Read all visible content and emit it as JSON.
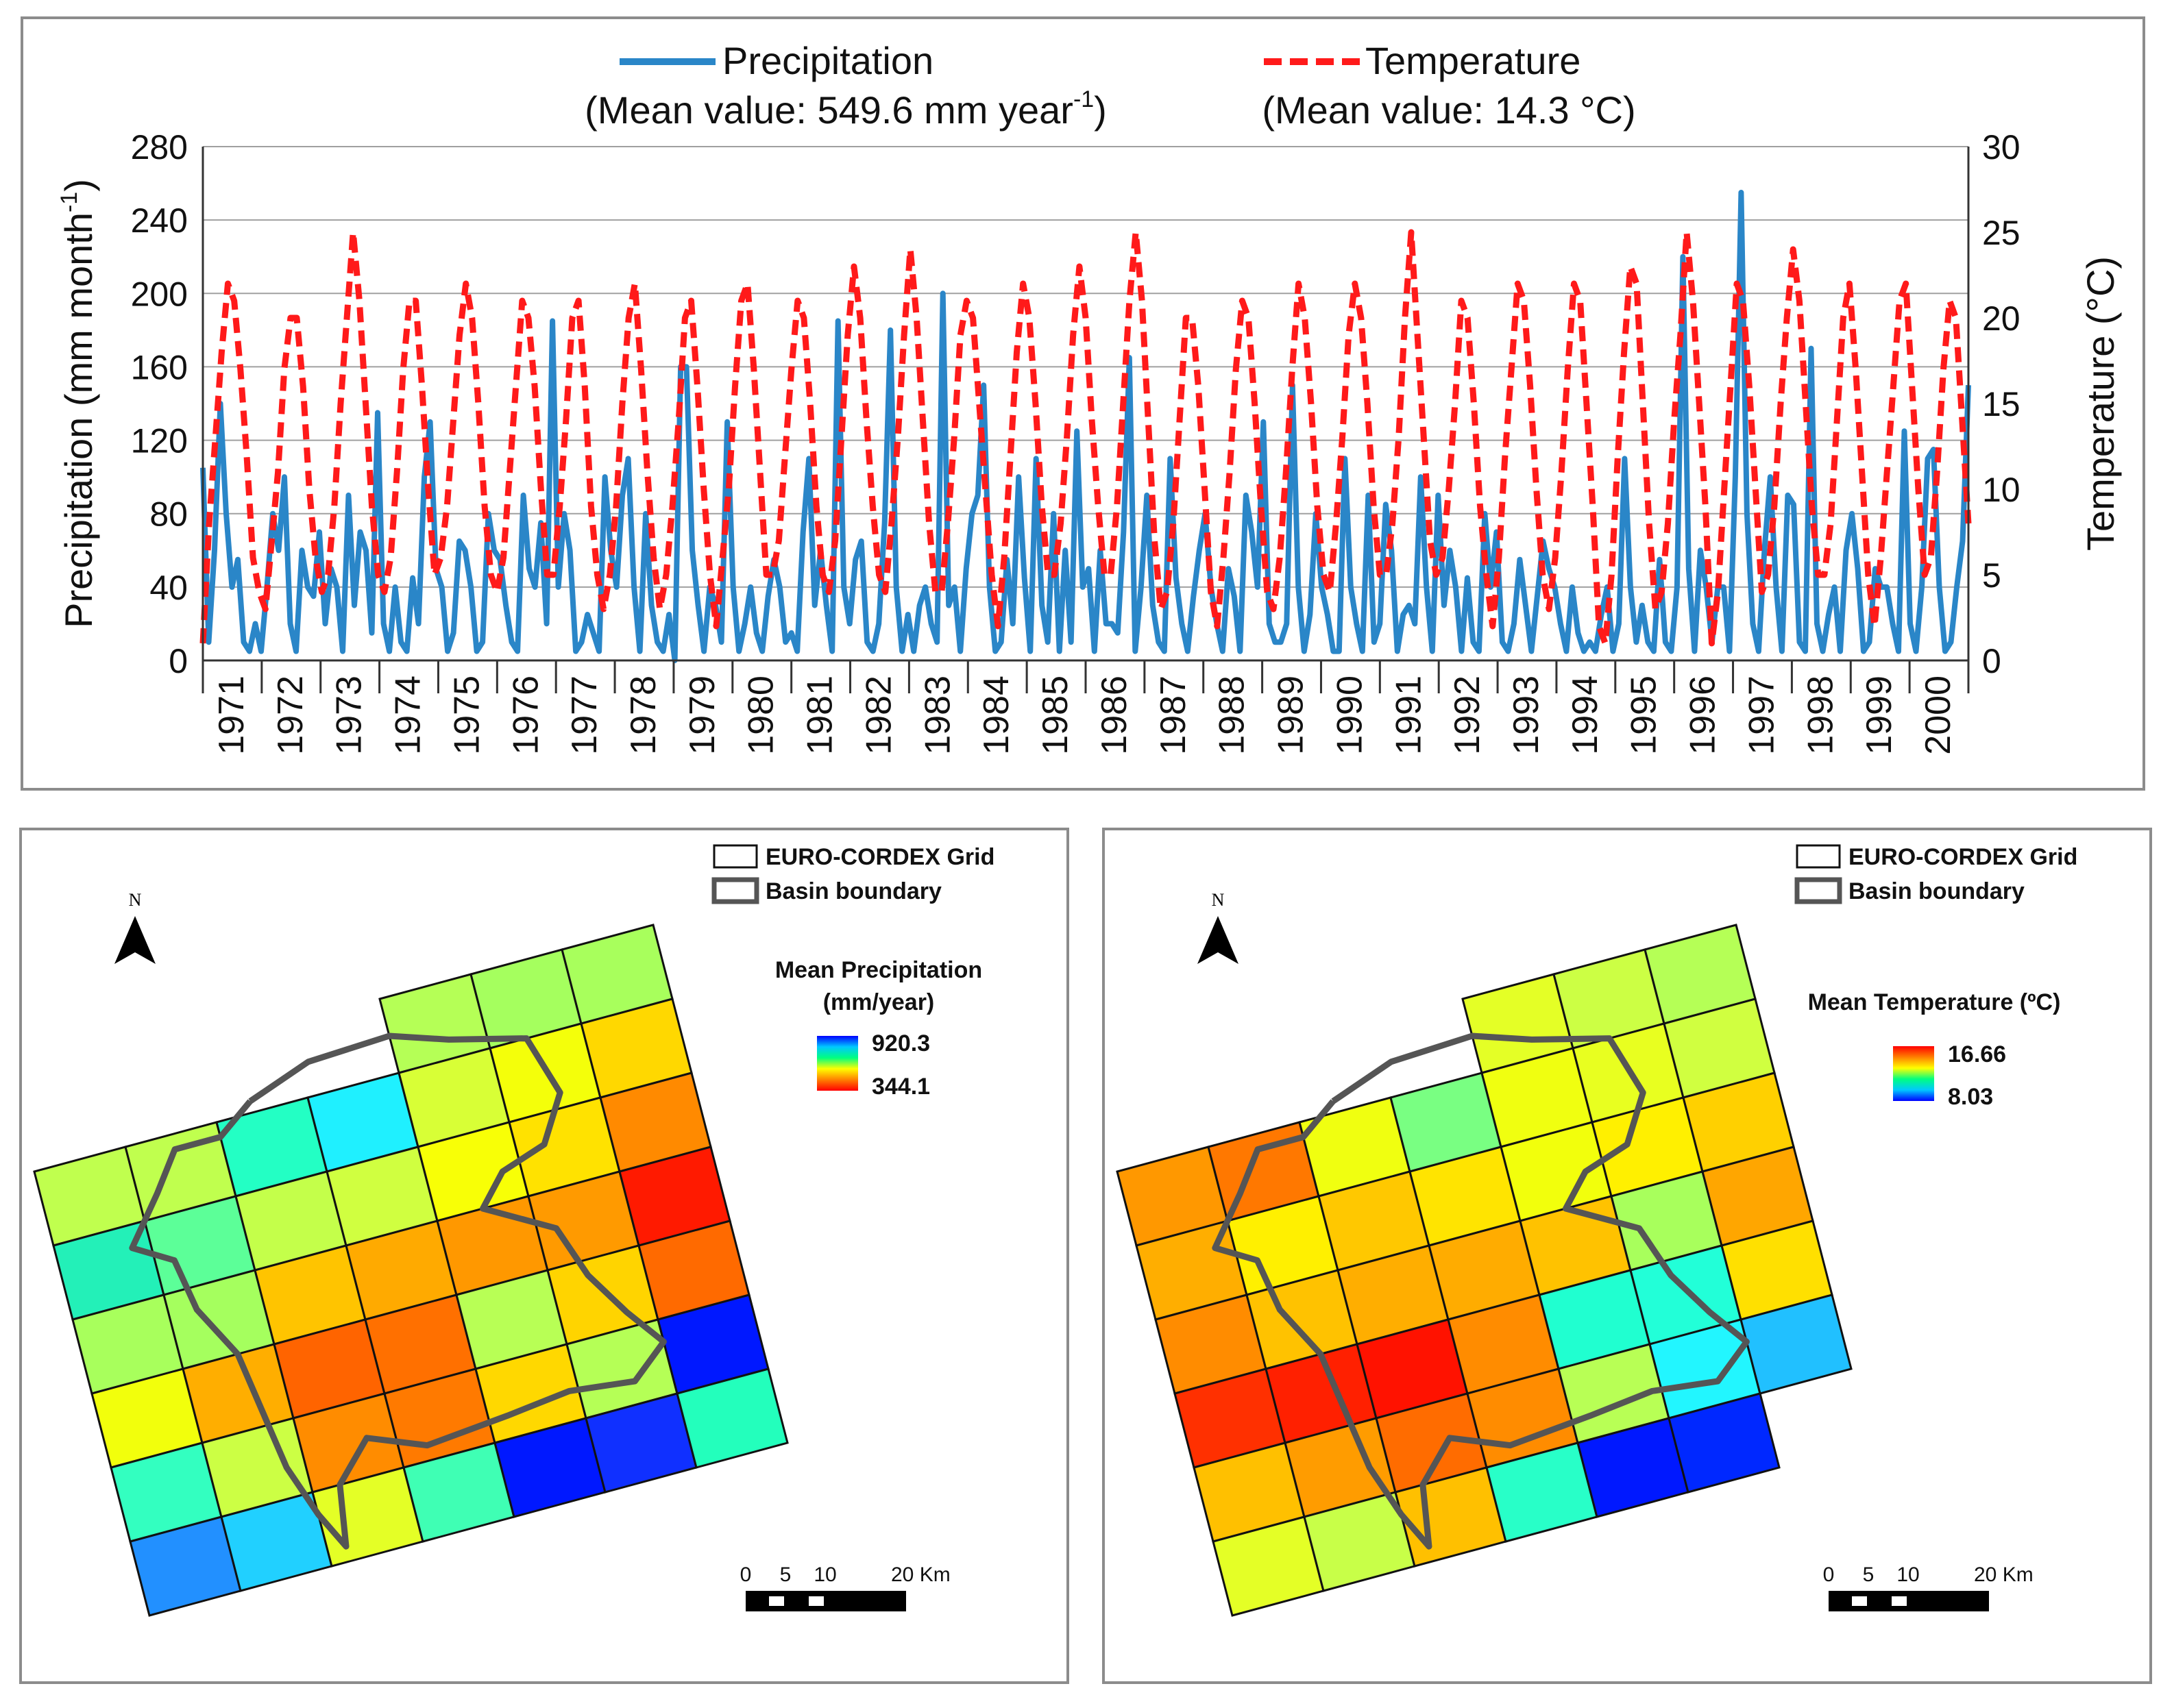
{
  "chart_data": [
    {
      "type": "line",
      "legend": {
        "precip_label": "Precipitation",
        "precip_mean": "(Mean value: 549.6 mm year",
        "precip_mean_sup": "-1",
        "precip_mean_close": ")",
        "temp_label": "Temperature",
        "temp_mean": "(Mean value: 14.3 °C)"
      },
      "ylabel_left": "Precipitation (mm month",
      "ylabel_left_sup": "-1",
      "ylabel_left_close": ")",
      "ylabel_right": "Temperature (°C)",
      "ylim_left": [
        0,
        280
      ],
      "ylim_right": [
        0,
        30
      ],
      "yticks_left": [
        "0",
        "40",
        "80",
        "120",
        "160",
        "200",
        "240",
        "280"
      ],
      "yticks_right": [
        "0",
        "5",
        "10",
        "15",
        "20",
        "25",
        "30"
      ],
      "years": [
        "1971",
        "1972",
        "1973",
        "1974",
        "1975",
        "1976",
        "1977",
        "1978",
        "1979",
        "1980",
        "1981",
        "1982",
        "1983",
        "1984",
        "1985",
        "1986",
        "1987",
        "1988",
        "1989",
        "1990",
        "1991",
        "1992",
        "1993",
        "1994",
        "1995",
        "1996",
        "1997",
        "1998",
        "1999",
        "2000"
      ],
      "precip_color": "#2a86c8",
      "temp_color": "#ff1a1a",
      "series": [
        {
          "name": "Precipitation",
          "values": [
            105,
            10,
            60,
            140,
            80,
            40,
            55,
            10,
            5,
            20,
            5,
            40,
            80,
            60,
            100,
            20,
            5,
            60,
            40,
            35,
            70,
            20,
            50,
            40,
            5,
            90,
            30,
            70,
            60,
            15,
            135,
            20,
            5,
            40,
            10,
            5,
            45,
            20,
            100,
            130,
            50,
            40,
            5,
            15,
            65,
            60,
            40,
            5,
            10,
            80,
            60,
            55,
            30,
            10,
            5,
            90,
            50,
            40,
            75,
            20,
            185,
            40,
            80,
            60,
            5,
            10,
            25,
            15,
            5,
            100,
            60,
            40,
            90,
            110,
            40,
            5,
            80,
            30,
            10,
            5,
            25,
            0,
            160,
            160,
            60,
            30,
            5,
            40,
            30,
            10,
            130,
            40,
            5,
            20,
            40,
            15,
            5,
            35,
            55,
            40,
            10,
            15,
            5,
            70,
            110,
            30,
            60,
            30,
            5,
            185,
            40,
            20,
            55,
            65,
            10,
            5,
            20,
            75,
            180,
            40,
            5,
            25,
            5,
            30,
            40,
            20,
            10,
            200,
            30,
            40,
            5,
            50,
            80,
            90,
            150,
            40,
            5,
            10,
            55,
            20,
            100,
            45,
            5,
            110,
            30,
            10,
            80,
            5,
            60,
            10,
            125,
            40,
            50,
            5,
            60,
            20,
            20,
            15,
            70,
            165,
            5,
            40,
            90,
            30,
            10,
            5,
            110,
            45,
            20,
            5,
            35,
            60,
            80,
            40,
            20,
            5,
            50,
            35,
            5,
            90,
            70,
            40,
            130,
            20,
            10,
            10,
            20,
            150,
            40,
            5,
            25,
            80,
            40,
            25,
            5,
            5,
            110,
            40,
            20,
            5,
            90,
            10,
            20,
            85,
            60,
            5,
            25,
            30,
            20,
            100,
            40,
            5,
            90,
            30,
            60,
            40,
            5,
            45,
            10,
            5,
            80,
            40,
            70,
            10,
            5,
            20,
            55,
            30,
            5,
            35,
            65,
            50,
            40,
            20,
            5,
            40,
            15,
            5,
            10,
            5,
            25,
            40,
            5,
            20,
            110,
            40,
            10,
            30,
            10,
            5,
            55,
            10,
            5,
            40,
            220,
            50,
            5,
            60,
            40,
            10,
            40,
            40,
            5,
            100,
            255,
            80,
            20,
            5,
            60,
            100,
            40,
            5,
            90,
            85,
            10,
            5,
            170,
            20,
            5,
            25,
            40,
            5,
            60,
            80,
            50,
            5,
            10,
            50,
            40,
            40,
            20,
            5,
            125,
            20,
            5,
            40,
            110,
            115,
            40,
            5,
            10,
            40,
            65,
            150
          ]
        },
        {
          "name": "Temperature",
          "values": [
            1,
            8,
            13,
            18,
            22,
            21,
            17,
            12,
            6,
            4,
            3,
            7,
            11,
            17,
            20,
            20,
            16,
            10,
            6,
            4,
            5,
            9,
            15,
            20,
            25,
            21,
            15,
            9,
            5,
            4,
            6,
            11,
            17,
            21,
            21,
            16,
            10,
            5,
            6,
            9,
            14,
            19,
            22,
            20,
            15,
            9,
            5,
            4,
            6,
            11,
            16,
            21,
            20,
            16,
            10,
            5,
            5,
            9,
            14,
            20,
            21,
            16,
            9,
            5,
            3,
            5,
            9,
            15,
            20,
            22,
            17,
            11,
            6,
            3,
            5,
            9,
            14,
            20,
            21,
            16,
            10,
            5,
            2,
            6,
            10,
            16,
            21,
            22,
            17,
            11,
            5,
            5,
            7,
            12,
            17,
            21,
            20,
            15,
            9,
            5,
            4,
            7,
            13,
            19,
            23,
            20,
            14,
            9,
            5,
            4,
            8,
            13,
            19,
            24,
            20,
            14,
            8,
            4,
            4,
            8,
            13,
            19,
            21,
            20,
            15,
            10,
            5,
            2,
            6,
            12,
            18,
            22,
            20,
            15,
            9,
            5,
            5,
            8,
            13,
            19,
            23,
            20,
            14,
            9,
            5,
            5,
            9,
            15,
            21,
            25,
            21,
            14,
            7,
            3,
            4,
            8,
            14,
            20,
            20,
            16,
            10,
            4,
            2,
            6,
            11,
            17,
            21,
            20,
            15,
            9,
            4,
            3,
            6,
            11,
            17,
            22,
            20,
            15,
            9,
            5,
            4,
            8,
            13,
            19,
            22,
            20,
            15,
            9,
            5,
            5,
            8,
            13,
            20,
            25,
            19,
            13,
            7,
            5,
            6,
            10,
            15,
            21,
            20,
            15,
            9,
            5,
            2,
            6,
            12,
            17,
            22,
            21,
            16,
            10,
            5,
            3,
            6,
            11,
            17,
            22,
            21,
            15,
            9,
            2,
            1,
            5,
            12,
            18,
            23,
            22,
            15,
            8,
            3,
            4,
            8,
            14,
            19,
            25,
            21,
            15,
            9,
            1,
            4,
            10,
            16,
            22,
            21,
            16,
            10,
            4,
            5,
            9,
            15,
            20,
            24,
            21,
            15,
            9,
            5,
            5,
            8,
            14,
            20,
            22,
            17,
            11,
            5,
            2,
            6,
            11,
            16,
            21,
            22,
            16,
            10,
            5,
            6,
            11,
            17,
            21,
            20,
            14,
            8
          ]
        }
      ]
    },
    {
      "type": "heatmap",
      "title": "Mean Precipitation",
      "units": "(mm/year)",
      "scale_max": "920.3",
      "scale_min": "344.1",
      "legend_grid": "EURO-CORDEX Grid",
      "legend_basin": "Basin boundary",
      "north": "N",
      "scale_labels": [
        "0",
        "5",
        "10",
        "20 Km"
      ],
      "rows": [
        [
          "",
          "",
          "",
          "",
          "#b5ff56",
          "#a5ff5e",
          "#a8ff5c"
        ],
        [
          "#c0ff4e",
          "#c0ff4e",
          "#23ffc4",
          "#1ff0ff",
          "#d8ff36",
          "#f4ff0a",
          "#ffd800"
        ],
        [
          "#23f0b8",
          "#5cff98",
          "#c4ff4a",
          "#d0ff40",
          "#f8ff06",
          "#ffe200",
          "#ff8a00"
        ],
        [
          "#a8ff5c",
          "#a5ff5e",
          "#ffc400",
          "#ffaa00",
          "#ff9800",
          "#ff9a00",
          "#ff1a00"
        ],
        [
          "#f2ff0c",
          "#ffae00",
          "#ff6400",
          "#ff7000",
          "#b8ff55",
          "#ffd400",
          "#ff6a00"
        ],
        [
          "#33ffc0",
          "#ccff44",
          "#ff8c00",
          "#ff7a00",
          "#ffd800",
          "#b5ff56",
          "#0018ff"
        ],
        [
          "#2290ff",
          "#21d0ff",
          "#e4ff26",
          "#3fffb4",
          "#0018ff",
          "#1030ff",
          "#23ffbc"
        ]
      ]
    },
    {
      "type": "heatmap",
      "title": "Mean Temperature (ºC)",
      "scale_max": "16.66",
      "scale_min": "8.03",
      "legend_grid": "EURO-CORDEX Grid",
      "legend_basin": "Basin boundary",
      "north": "N",
      "scale_labels": [
        "0",
        "5",
        "10",
        "20 Km"
      ],
      "rows": [
        [
          "",
          "",
          "",
          "",
          "#e4ff26",
          "#ccff44",
          "#b5ff56"
        ],
        [
          "#ff9800",
          "#ff7800",
          "#f0ff10",
          "#79ff82",
          "#f0ff10",
          "#e8ff20",
          "#d0ff40"
        ],
        [
          "#ffae00",
          "#fff000",
          "#ffc800",
          "#ffe400",
          "#f2ff0c",
          "#fff000",
          "#ffd000"
        ],
        [
          "#ff8c00",
          "#ffc200",
          "#ffae00",
          "#ffac00",
          "#ffc200",
          "#a8ff5c",
          "#ffa600"
        ],
        [
          "#ff3000",
          "#ff2000",
          "#ff1200",
          "#ff8c00",
          "#20ffd0",
          "#22ffd8",
          "#ffe000"
        ],
        [
          "#ffc000",
          "#ff9c00",
          "#ff6c00",
          "#ff8c00",
          "#b8ff55",
          "#22f6ff",
          "#21c0ff"
        ],
        [
          "#e4ff26",
          "#c8ff48",
          "#ffc000",
          "#28ffc8",
          "#0018ff",
          "#0028ff",
          ""
        ]
      ]
    }
  ]
}
